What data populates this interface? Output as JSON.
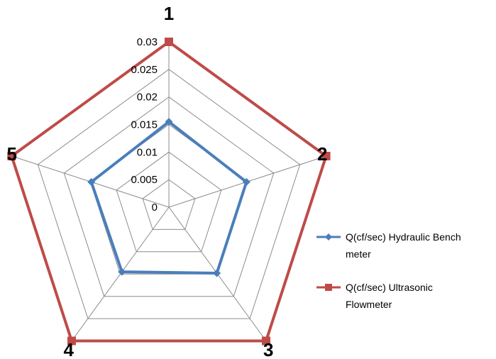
{
  "chart_data": {
    "type": "radar",
    "categories": [
      "1",
      "2",
      "3",
      "4",
      "5"
    ],
    "rlim": [
      0,
      0.03
    ],
    "tick_labels": [
      "0",
      "0.005",
      "0.01",
      "0.015",
      "0.02",
      "0.025",
      "0.03"
    ],
    "ticks": [
      0,
      0.005,
      0.01,
      0.015,
      0.02,
      0.025,
      0.03
    ],
    "grid": true,
    "legend_position": "right",
    "series": [
      {
        "name": "Q(cf/sec) Hydraulic Bench meter",
        "name_lines": [
          "Q(cf/sec) Hydraulic Bench",
          "meter"
        ],
        "values": [
          0.0155,
          0.0148,
          0.0148,
          0.0145,
          0.0148
        ],
        "color": "#4a7ebb",
        "marker": "diamond"
      },
      {
        "name": "Q(cf/sec) Ultrasonic Flowmeter",
        "name_lines": [
          "Q(cf/sec) Ultrasonic",
          "Flowmeter"
        ],
        "values": [
          0.03,
          0.03,
          0.03,
          0.03,
          0.03
        ],
        "color": "#be4b48",
        "marker": "square"
      }
    ]
  }
}
